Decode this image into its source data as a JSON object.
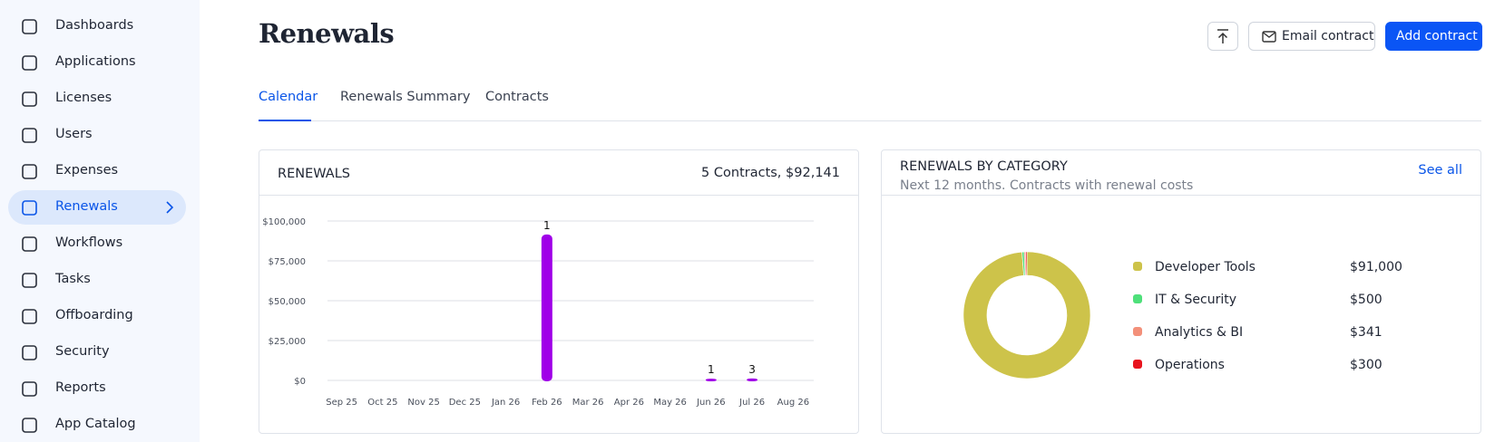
{
  "sidebar": {
    "items": [
      "Dashboards",
      "Applications",
      "Licenses",
      "Users",
      "Expenses",
      "Renewals",
      "Workflows",
      "Tasks",
      "Offboarding",
      "Security",
      "Reports",
      "App Catalog"
    ]
  },
  "header": {
    "title": "Renewals",
    "buttons": [
      "Email contract",
      "Add contract"
    ]
  },
  "tabs": [
    "Calendar",
    "Renewals Summary",
    "Contracts"
  ],
  "renewals_card": {
    "title": "RENEWALS",
    "summary": "5 Contracts, $92,141"
  },
  "category_card": {
    "title": "RENEWALS BY CATEGORY",
    "subtitle": "Next 12 months. Contracts with renewal costs",
    "link": "See all"
  },
  "chart_data": [
    {
      "type": "bar",
      "categories": [
        "Sep 25",
        "Oct 25",
        "Nov 25",
        "Dec 25",
        "Jan 26",
        "Feb 26",
        "Mar 26",
        "Apr 26",
        "May 26",
        "Jun 26",
        "Jul 26",
        "Aug 26"
      ],
      "values": [
        0,
        0,
        0,
        0,
        0,
        91000,
        0,
        0,
        0,
        500,
        641,
        0
      ],
      "contract_counts": [
        null,
        null,
        null,
        null,
        null,
        1,
        null,
        null,
        null,
        1,
        3,
        null
      ],
      "color": "#a000e8",
      "ylim": [
        0,
        100000
      ],
      "yticks": [
        {
          "value": 0,
          "label": "$0"
        },
        {
          "value": 25000,
          "label": "$25,000"
        },
        {
          "value": 50000,
          "label": "$50,000"
        },
        {
          "value": 75000,
          "label": "$75,000"
        },
        {
          "value": 100000,
          "label": "$100,000"
        }
      ],
      "grid": true
    },
    {
      "type": "pie",
      "categories": [
        "Developer Tools",
        "IT & Security",
        "Analytics & BI",
        "Operations"
      ],
      "values": [
        91000,
        500,
        341,
        300
      ],
      "value_labels": [
        "$91,000",
        "$500",
        "$341",
        "$300"
      ],
      "colors": [
        "#cdc34a",
        "#4ee07a",
        "#f3907a",
        "#e8141e"
      ]
    }
  ]
}
